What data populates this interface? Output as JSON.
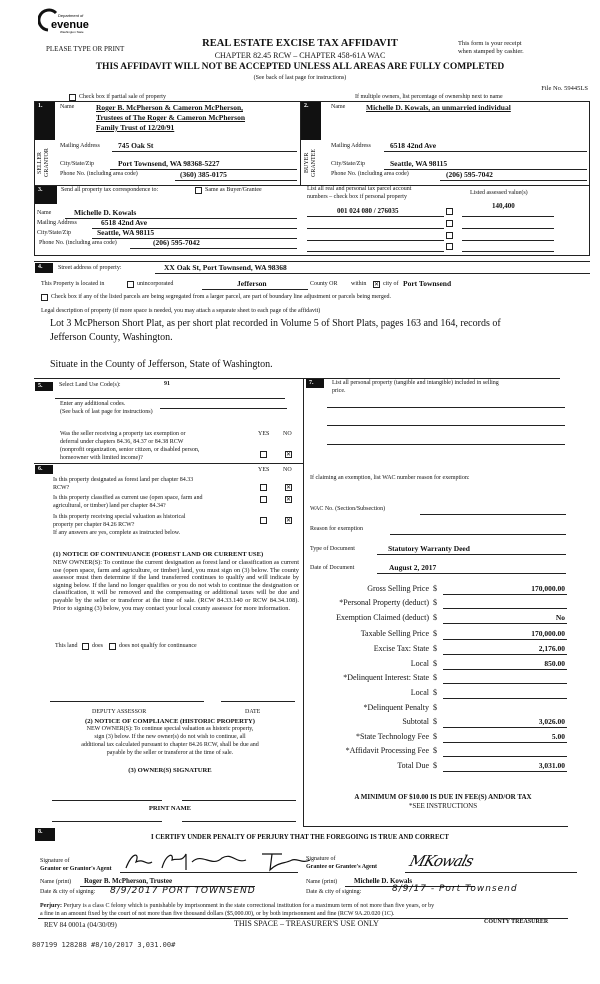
{
  "header": {
    "logo_text": [
      "Department of",
      "Revenue",
      "Washington State"
    ],
    "please": "PLEASE TYPE OR PRINT",
    "title": "REAL ESTATE EXCISE TAX AFFIDAVIT",
    "chapter": "CHAPTER 82.45 RCW – CHAPTER 458-61A WAC",
    "receipt": [
      "This form is your receipt",
      "when stamped by cashier."
    ],
    "warning": "THIS AFFIDAVIT WILL NOT BE ACCEPTED UNLESS ALL AREAS ARE FULLY COMPLETED",
    "see_back": "(See back of last page for instructions)",
    "file_no": "File No. 59445LS",
    "partial_sale": "Check box if partial sale of property",
    "multiple_owners": "If multiple owners, list percentage of ownership next to name"
  },
  "seller": {
    "num": "1.",
    "side": "SELLER GRANTOR",
    "name_label": "Name",
    "name": [
      "Roger B. McPherson & Cameron McPherson,",
      "Trustees of The Roger & Cameron McPherson",
      "Family Trust of 12/20/91"
    ],
    "mail_label": "Mailing Address",
    "mail": "745 Oak St",
    "city_label": "City/State/Zip",
    "city": "Port Townsend, WA 98368-5227",
    "phone_label": "Phone No. (including area code)",
    "phone": "(360) 385-0175"
  },
  "buyer": {
    "num": "2.",
    "side": "BUYER GRANTEE",
    "name_label": "Name",
    "name": "Michelle D. Kowals, an unmarried individual",
    "mail_label": "Mailing Address",
    "mail": "6518 42nd Ave",
    "city_label": "City/State/Zip",
    "city": "Seattle, WA 98115",
    "phone_label": "Phone No. (including area code)",
    "phone": "(206) 595-7042"
  },
  "correspondence": {
    "num": "3.",
    "label": "Send all property tax correspondence to:",
    "same_label": "Same as Buyer/Grantee",
    "same_checked": false,
    "name_label": "Name",
    "name": "Michelle D. Kowals",
    "mail_label": "Mailing Address",
    "mail": "6518 42nd Ave",
    "city_label": "City/State/Zip",
    "city": "Seattle, WA 98115",
    "phone_label": "Phone No. (including area code)",
    "phone": "(206) 595-7042",
    "parcel_header": [
      "List all real and personal tax parcel account",
      "numbers – check box if personal property"
    ],
    "assessed_header": "Listed assessed value(s)",
    "parcel": "001 024 080 / 276035",
    "assessed": "140,400"
  },
  "property": {
    "num": "4.",
    "street_label": "Street address of property:",
    "street": "XX Oak St, Port Townsend, WA  98368",
    "located_label": "This Property is located in",
    "unincorporated": "unincorporated",
    "unincorporated_checked": false,
    "county": "Jefferson",
    "county_label": "County OR",
    "within": "within",
    "city_checked": true,
    "city_of": "city of",
    "city": "Port Townsend",
    "segregated": "Check box if any of the listed parcels are being segregated from a larger parcel, are part of boundary line adjustment or parcels being merged.",
    "legal_label": "Legal description of property (if more space is needed, you may attach a separate sheet to each page of the affidavit)",
    "legal": [
      "Lot 3 McPherson Short Plat, as per short plat recorded in Volume 5 of Short Plats, pages 163 and 164, records of",
      "Jefferson County, Washington."
    ],
    "situate": "Situate in the County of Jefferson, State of Washington."
  },
  "land_use": {
    "num": "5.",
    "label": "Select Land Use Code(s):",
    "code": "91",
    "additional": "Enter any additional codes.",
    "see_back": "(See back of last page for instructions)",
    "yes": "YES",
    "no": "NO",
    "question": [
      "Was the seller receiving a property tax exemption or",
      "deferral under chapters 84.36, 84.37 or 84.38 RCW",
      "(nonprofit organization, senior citizen, or disabled person,",
      "homeowner with limited income)?"
    ],
    "answer": "NO"
  },
  "section6": {
    "num": "6.",
    "yes": "YES",
    "no": "NO",
    "questions": [
      {
        "text": [
          "Is this property designated as forest land per chapter 84.33",
          "RCW?"
        ],
        "answer": "NO"
      },
      {
        "text": [
          "Is this property classified as current use (open space, farm and",
          "agricultural, or timber) land per chapter 84.34?"
        ],
        "answer": "NO"
      },
      {
        "text": [
          "Is this property receiving special valuation as historical",
          "property per chapter 84.26 RCW?"
        ],
        "answer": "NO"
      }
    ],
    "if_yes": "If any answers are yes, complete as instructed below.",
    "notice1_title": "(1) NOTICE OF CONTINUANCE (FOREST LAND OR CURRENT USE)",
    "notice1_text": "NEW OWNER(S): To continue the current designation as forest land or classification as current use (open space, farm and agriculture, or timber) land, you must sign on (3) below. The county assessor must then determine if the land transferred continues to qualify and will indicate by signing below. If the land no longer qualifies or you do not wish to continue the designation or classification, it will be removed and the compensating or additional taxes will be due and payable by the seller or transferor at the time of sale. (RCW 84.33.140 or RCW 84.34.108). Prior to signing (3) below, you may contact your local county assessor for more information.",
    "this_land": "This land",
    "does": "does",
    "does_not": "does not  qualify for continuance",
    "deputy": "DEPUTY ASSESSOR",
    "date": "DATE",
    "notice2_title": "(2) NOTICE OF COMPLIANCE (HISTORIC PROPERTY)",
    "notice2_text": [
      "NEW OWNER(S): To continue special valuation as historic property,",
      "sign (3) below.  If the new owner(s) do not wish to continue, all",
      "additional tax calculated pursuant to chapter 84.26 RCW, shall be due and",
      "payable by the seller or transferor at the time of sale."
    ],
    "owner_sig": "(3)  OWNER(S) SIGNATURE",
    "print_name": "PRINT NAME"
  },
  "section7": {
    "num": "7.",
    "label": "List all personal property (tangible and intangible) included in selling",
    "label2": "price.",
    "exemption": "If claiming an exemption, list WAC number reason for exemption:",
    "wac_label": "WAC No. (Section/Subsection)",
    "reason_label": "Reason for exemption",
    "doc_type_label": "Type of Document",
    "doc_type": "Statutory Warranty Deed",
    "doc_date_label": "Date of Document",
    "doc_date": "August 2, 2017",
    "fees": [
      {
        "label": "Gross Selling Price",
        "value": "170,000.00"
      },
      {
        "label": "*Personal Property (deduct)",
        "value": ""
      },
      {
        "label": "Exemption Claimed (deduct)",
        "value": "No"
      },
      {
        "label": "Taxable Selling Price",
        "value": "170,000.00"
      },
      {
        "label": "Excise Tax:  State",
        "value": "2,176.00"
      },
      {
        "label": "Local",
        "value": "850.00"
      },
      {
        "label": "*Delinquent Interest:  State",
        "value": ""
      },
      {
        "label": "Local",
        "value": ""
      },
      {
        "label": "*Delinquent Penalty",
        "value": ""
      },
      {
        "label": "Subtotal",
        "value": "3,026.00"
      },
      {
        "label": "*State Technology Fee",
        "value": "5.00"
      },
      {
        "label": "*Affidavit Processing Fee",
        "value": ""
      },
      {
        "label": "Total Due",
        "value": "3,031.00"
      }
    ],
    "dollar": "$",
    "minimum": "A MINIMUM OF $10.00 IS DUE IN FEE(S) AND/OR TAX",
    "see_instr": "*SEE INSTRUCTIONS"
  },
  "section8": {
    "num": "8.",
    "certify": "I CERTIFY UNDER PENALTY OF PERJURY THAT THE FOREGOING IS TRUE AND CORRECT",
    "grantor_sig_label": [
      "Signature of",
      "Grantor or Grantor's Agent"
    ],
    "grantee_sig_label": [
      "Signature of",
      "Grantee or Grantee's Agent"
    ],
    "name_label": "Name (print)",
    "grantor_name": "Roger B. McPherson, Trustee",
    "grantee_name": "Michelle D. Kowals",
    "date_label": "Date & city of signing:",
    "grantor_date": "8/9/2017  PORT TOWNSEND",
    "grantee_date": "8/9/17 - Port Townsend",
    "grantor_signature": "Roger B McPherson Trustee",
    "grantee_signature": "MKowals",
    "perjury_label": "Perjury:",
    "perjury": "Perjury is a class C felony which is punishable by imprisonment in the state correctional institution for a maximum term of not more than five years, or by",
    "perjury2": "a fine in an amount fixed by the court of not more than five thousand dollars ($5,000.00), or by both imprisonment and fine (RCW 9A.20.020 (1C).",
    "rev": "REV 84 0001a (04/30/09)",
    "treasurer_use": "THIS SPACE – TREASURER'S USE ONLY",
    "county_treasurer": "COUNTY TREASURER"
  },
  "stamp": "807199 128288 #8/10/2017 3,031.00#"
}
